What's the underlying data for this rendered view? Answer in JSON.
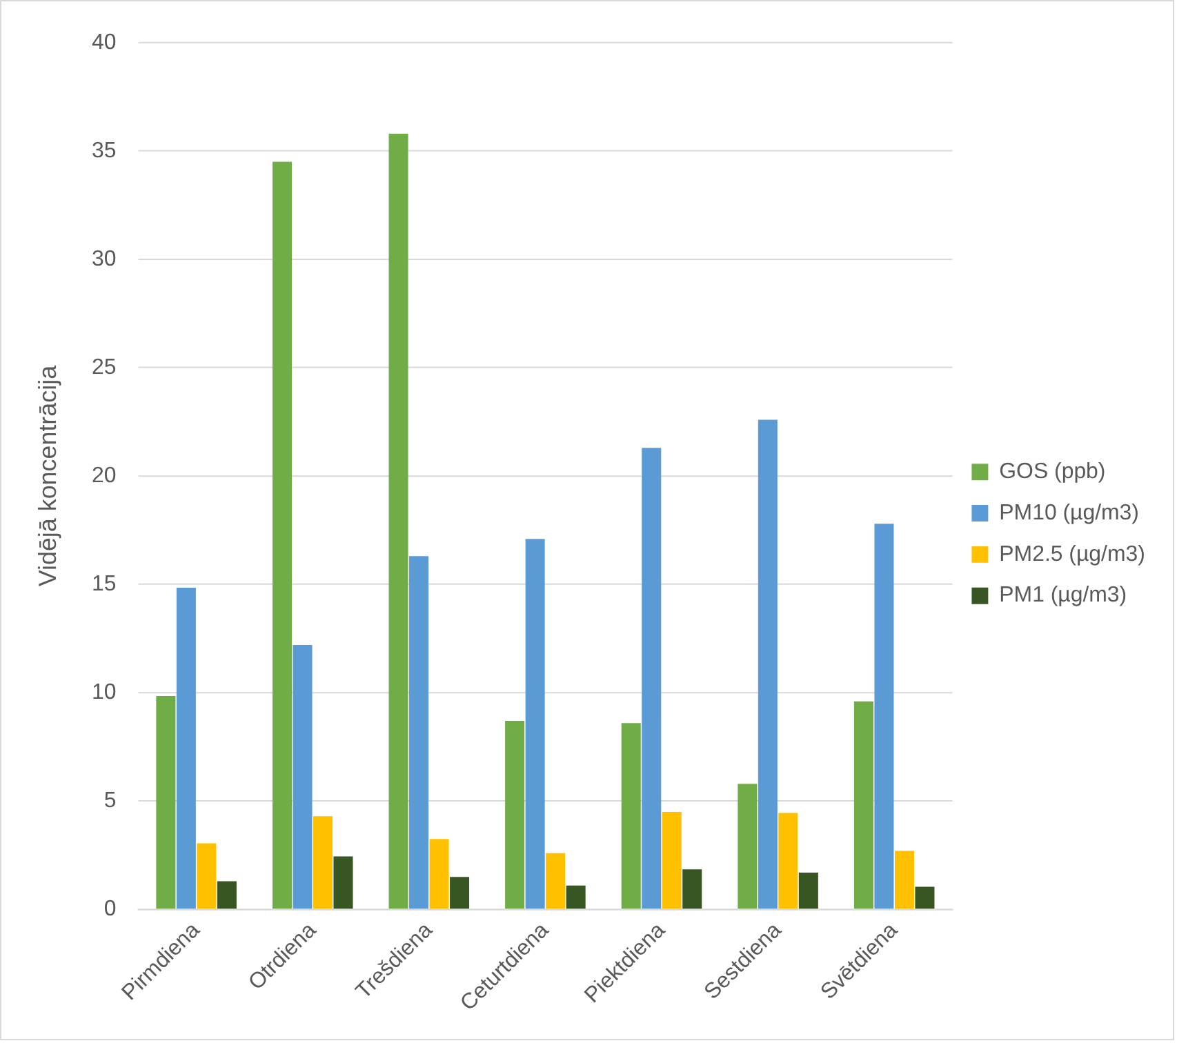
{
  "chart_data": {
    "type": "bar",
    "ylabel": "Vidējā koncentrācija",
    "categories": [
      "Pirmdiena",
      "Otrdiena",
      "Trešdiena",
      "Ceturtdiena",
      "Piektdiena",
      "Sestdiena",
      "Svētdiena"
    ],
    "series": [
      {
        "name": "GOS (ppb)",
        "color": "#70ad47",
        "values": [
          9.85,
          34.5,
          35.8,
          8.7,
          8.6,
          5.8,
          9.6
        ]
      },
      {
        "name": "PM10 (µg/m3)",
        "color": "#5b9bd5",
        "values": [
          14.85,
          12.2,
          16.3,
          17.1,
          21.3,
          22.6,
          17.8
        ]
      },
      {
        "name": "PM2.5 (µg/m3)",
        "color": "#ffc000",
        "values": [
          3.05,
          4.3,
          3.25,
          2.6,
          4.5,
          4.45,
          2.7
        ]
      },
      {
        "name": "PM1 (µg/m3)",
        "color": "#375623",
        "values": [
          1.3,
          2.45,
          1.5,
          1.1,
          1.85,
          1.7,
          1.05
        ]
      }
    ],
    "ylim": [
      0,
      40
    ],
    "yticks": [
      0,
      5,
      10,
      15,
      20,
      25,
      30,
      35,
      40
    ],
    "grid": "y",
    "legend": "right"
  }
}
